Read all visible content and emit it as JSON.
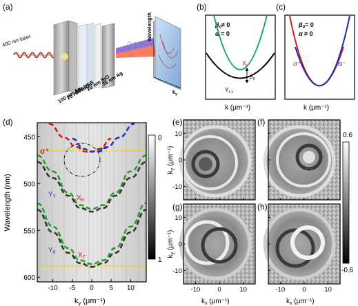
{
  "panels": {
    "a": {
      "label": "(a)",
      "laser": "400 nm laser",
      "layers": [
        "35 nm Ag",
        "20 nm SiO",
        "6M-DSB",
        "20 nm SiO",
        "100 nm Ag"
      ],
      "wavelength_axis": "Wavelength",
      "ky_axis": "k",
      "ky_sub": "y"
    },
    "b": {
      "label": "(b)",
      "beta_eq": "≠ 0",
      "alpha_eq": "= 0",
      "X_label": "X",
      "X_sub": "I",
      "Y_label": "Y",
      "Y_sub": "I-1",
      "beta_mark_sub": "0",
      "xlabel": "k (μm⁻¹)"
    },
    "c": {
      "label": "(c)",
      "beta_eq": "= 0",
      "alpha_eq": "≠ 0",
      "sigma_plus": "σ⁺",
      "sigma_minus": "σ⁻",
      "xlabel": "k (μm⁻¹)"
    },
    "d": {
      "label": "(d)",
      "ylabel": "Wavelength (nm)",
      "xlabel_main": "k",
      "xlabel_sub": "y",
      "xlabel_unit": "(μm⁻¹)",
      "colorbar_ticks": [
        "0",
        "1"
      ],
      "branch_labels": [
        {
          "text": "σ⁺",
          "color": "#d21f1f"
        },
        {
          "text": "σ⁻",
          "color": "#2233cc"
        },
        {
          "text": "Y",
          "sub": "7",
          "color": "#2233cc"
        },
        {
          "text": "X",
          "sub": "8",
          "color": "#d21f1f"
        },
        {
          "text": "Y",
          "sub": "6",
          "color": "#2233cc"
        },
        {
          "text": "X",
          "sub": "7",
          "color": "#d21f1f"
        }
      ]
    },
    "e": {
      "label": "(e)"
    },
    "f": {
      "label": "(f)"
    },
    "g": {
      "label": "(g)"
    },
    "h": {
      "label": "(h)"
    },
    "kspace": {
      "ky_label": "k",
      "ky_sub": "y",
      "ky_unit": "(μm⁻¹)",
      "kx_label": "k",
      "kx_sub": "x",
      "kx_unit": "(μm⁻¹)",
      "colorbar_ticks": [
        "0.6",
        "-0.6"
      ]
    }
  },
  "chart_data": [
    {
      "type": "line",
      "panel": "d",
      "ylabel": "Wavelength (nm)",
      "xlabel": "ky (μm⁻¹)",
      "xlim": [
        -14,
        14
      ],
      "ylim": [
        605,
        435
      ],
      "x_ticks": [
        -10,
        -5,
        0,
        5,
        10
      ],
      "y_ticks": [
        450,
        500,
        550,
        600
      ],
      "series": [
        {
          "name": "σ⁺",
          "color": "#d21f1f",
          "x": [
            -11,
            -7,
            -4,
            -1.5,
            0,
            2,
            5
          ],
          "y": [
            436,
            451,
            461,
            466,
            466,
            463,
            452
          ]
        },
        {
          "name": "σ⁻",
          "color": "#2233cc",
          "x": [
            -5,
            -2,
            0,
            1.5,
            4,
            7,
            11
          ],
          "y": [
            452,
            463,
            466,
            466,
            461,
            451,
            436
          ]
        },
        {
          "name": "X8",
          "color": "#2a9d2a",
          "x": [
            -14,
            -10,
            -6,
            -3,
            0,
            3,
            6,
            10,
            14
          ],
          "y": [
            470,
            487,
            510,
            523,
            527,
            523,
            510,
            487,
            470
          ]
        },
        {
          "name": "Y7",
          "color": "#333333",
          "x": [
            -14,
            -10,
            -6,
            -3,
            0,
            3,
            6,
            10,
            14
          ],
          "y": [
            477,
            494,
            513,
            526,
            530,
            526,
            513,
            494,
            477
          ]
        },
        {
          "name": "X7",
          "color": "#2a9d2a",
          "x": [
            -14,
            -10,
            -6,
            -3,
            0,
            3,
            6,
            10,
            14
          ],
          "y": [
            521,
            546,
            569,
            582,
            586,
            582,
            569,
            546,
            521
          ]
        },
        {
          "name": "Y6",
          "color": "#333333",
          "x": [
            -14,
            -10,
            -6,
            -3,
            0,
            3,
            6,
            10,
            14
          ],
          "y": [
            528,
            552,
            574,
            585,
            589,
            585,
            574,
            552,
            528
          ]
        }
      ],
      "reference_lines": [
        {
          "y": 465,
          "color": "#e8d200",
          "style": "dotted"
        },
        {
          "y": 588,
          "color": "#e8d200",
          "style": "dotted"
        }
      ],
      "colorbar": {
        "min": 0,
        "max": 1
      }
    },
    {
      "type": "line",
      "panel": "b",
      "xlabel": "k (μm⁻¹)",
      "series": [
        {
          "name": "X",
          "color": "#1aa86b"
        },
        {
          "name": "Y",
          "color": "#000000"
        }
      ]
    },
    {
      "type": "line",
      "panel": "c",
      "xlabel": "k (μm⁻¹)",
      "series": [
        {
          "name": "σ⁺",
          "color": "#d21f1f"
        },
        {
          "name": "σ⁻",
          "color": "#1c2bb0"
        }
      ]
    },
    {
      "type": "heatmap",
      "panels": [
        "e",
        "f",
        "g",
        "h"
      ],
      "xlabel": "kx (μm⁻¹)",
      "ylabel": "ky (μm⁻¹)",
      "x_ticks": [
        -10,
        0,
        10
      ],
      "y_ticks": [
        -10,
        0,
        10
      ],
      "xlim": [
        -15,
        15
      ],
      "ylim": [
        -15,
        15
      ],
      "colorbar": {
        "min": -0.6,
        "max": 0.6
      }
    }
  ]
}
